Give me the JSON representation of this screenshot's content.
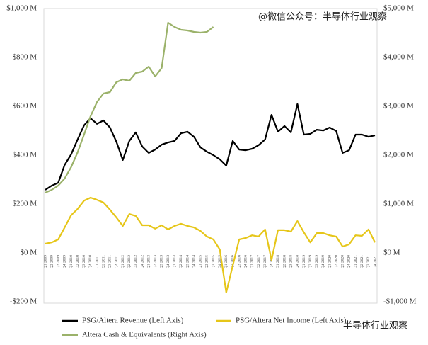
{
  "chart_data": {
    "type": "line",
    "categories": [
      "Q1 2009",
      "Q2 2009",
      "Q3 2009",
      "Q4 2009",
      "Q1 2010",
      "Q2 2010",
      "Q3 2010",
      "Q4 2010",
      "Q1 2011",
      "Q2 2011",
      "Q3 2011",
      "Q4 2011",
      "Q1 2012",
      "Q2 2012",
      "Q3 2012",
      "Q4 2012",
      "Q1 2013",
      "Q2 2013",
      "Q3 2013",
      "Q4 2013",
      "Q1 2014",
      "Q2 2014",
      "Q3 2014",
      "Q4 2014",
      "Q1 2015",
      "Q2 2015",
      "Q3 2015",
      "Q4 2015",
      "Q1 2016",
      "Q2 2016",
      "Q3 2016",
      "Q4 2016",
      "Q1 2017",
      "Q2 2017",
      "Q3 2017",
      "Q4 2017",
      "Q1 2018",
      "Q2 2018",
      "Q3 2018",
      "Q4 2018",
      "Q1 2019",
      "Q2 2019",
      "Q3 2019",
      "Q4 2019",
      "Q1 2020",
      "Q2 2020",
      "Q3 2020",
      "Q4 2020",
      "Q1 2021",
      "Q2 2021",
      "Q3 2021",
      "Q4 2021"
    ],
    "series": [
      {
        "name": "PSG/Altera Revenue (Left Axis)",
        "color": "#000000",
        "axis": "y",
        "values": [
          258,
          275,
          287,
          360,
          403,
          464,
          522,
          551,
          528,
          542,
          513,
          455,
          380,
          458,
          493,
          435,
          409,
          423,
          443,
          452,
          458,
          490,
          496,
          475,
          432,
          414,
          400,
          383,
          357,
          458,
          423,
          420,
          426,
          441,
          464,
          565,
          496,
          519,
          493,
          609,
          484,
          487,
          504,
          501,
          513,
          499,
          409,
          420,
          484,
          484,
          475,
          481
        ]
      },
      {
        "name": "PSG/Altera Net Income (Left Axis)",
        "color": "#e6c619",
        "axis": "y",
        "values": [
          38,
          43,
          55,
          104,
          154,
          180,
          214,
          226,
          217,
          206,
          177,
          145,
          110,
          159,
          151,
          113,
          113,
          99,
          113,
          96,
          110,
          119,
          110,
          104,
          90,
          67,
          55,
          14,
          -162,
          -52,
          55,
          61,
          72,
          67,
          96,
          -29,
          93,
          93,
          87,
          130,
          84,
          43,
          81,
          81,
          72,
          67,
          26,
          35,
          72,
          70,
          96,
          43
        ]
      },
      {
        "name": "Altera Cash & Equivalents (Right Axis)",
        "color": "#9bb26a",
        "axis": "y2",
        "values": [
          1232,
          1290,
          1377,
          1522,
          1754,
          2058,
          2420,
          2797,
          3087,
          3261,
          3290,
          3493,
          3551,
          3522,
          3681,
          3710,
          3812,
          3609,
          3783,
          4710,
          4623,
          4565,
          4551,
          4522,
          4507,
          4522,
          4623,
          null,
          null,
          null,
          null,
          null,
          null,
          null,
          null,
          null,
          null,
          null,
          null,
          null,
          null,
          null,
          null,
          null,
          null,
          null,
          null,
          null,
          null,
          null,
          null,
          null
        ]
      }
    ],
    "ylim": [
      -200,
      1000
    ],
    "yticks": [
      {
        "value": -200,
        "label": "-$200 M"
      },
      {
        "value": 0,
        "label": "$0 M"
      },
      {
        "value": 200,
        "label": "$200 M"
      },
      {
        "value": 400,
        "label": "$400 M"
      },
      {
        "value": 600,
        "label": "$600 M"
      },
      {
        "value": 800,
        "label": "$800 M"
      },
      {
        "value": 1000,
        "label": "$1,000 M"
      }
    ],
    "y2lim": [
      -1000,
      5000
    ],
    "y2ticks": [
      {
        "value": -1000,
        "label": "-$1,000 M"
      },
      {
        "value": 0,
        "label": "$0 M"
      },
      {
        "value": 1000,
        "label": "$1,000 M"
      },
      {
        "value": 2000,
        "label": "$2,000 M"
      },
      {
        "value": 3000,
        "label": "$3,000 M"
      },
      {
        "value": 4000,
        "label": "$4,000 M"
      },
      {
        "value": 5000,
        "label": "$5,000 M"
      }
    ],
    "annotations": [
      "@微信公众号：半导体行业观察",
      "半导体行业观察"
    ]
  }
}
